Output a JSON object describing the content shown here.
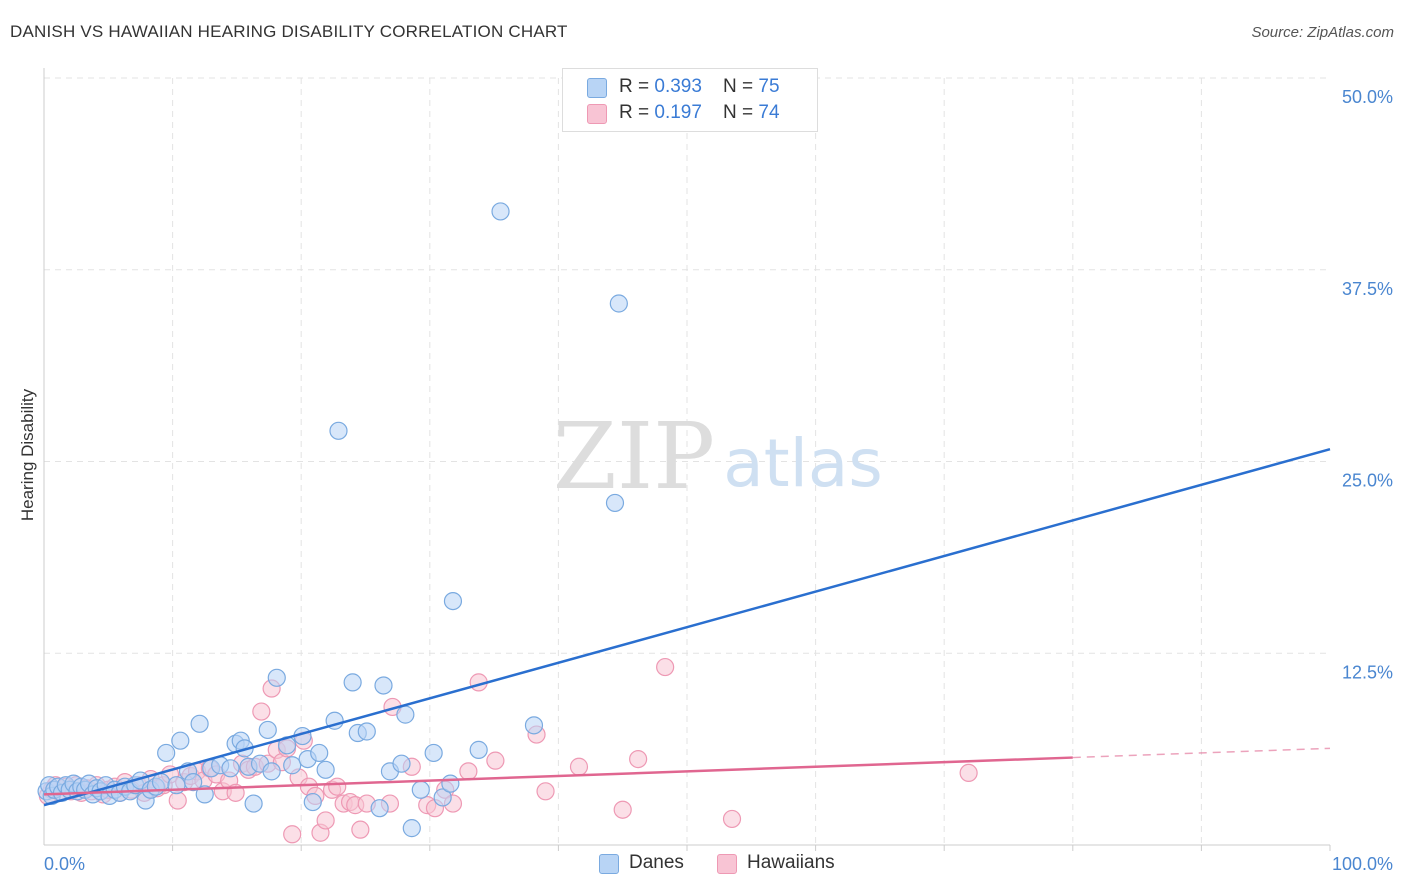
{
  "title": "DANISH VS HAWAIIAN HEARING DISABILITY CORRELATION CHART",
  "source": "Source: ZipAtlas.com",
  "watermark": {
    "zip": "ZIP",
    "atlas": "atlas"
  },
  "legend": {
    "rows": [
      {
        "r_label": "R = ",
        "r_value": "0.393",
        "n_label": "N = ",
        "n_value": "75"
      },
      {
        "r_label": "R = ",
        "r_value": "0.197",
        "n_label": "N = ",
        "n_value": "74"
      }
    ]
  },
  "colors": {
    "danes_fill": "#b8d4f5",
    "danes_stroke": "#7aaae0",
    "danes_line": "#2a6fcf",
    "hawaiians_fill": "#f8c4d4",
    "hawaiians_stroke": "#ee99b4",
    "hawaiians_line": "#e06690",
    "tick_label": "#4a86d0",
    "grid": "#e3e3e3"
  },
  "chart_data": {
    "type": "scatter",
    "ylabel": "Hearing Disability",
    "xlabel": "",
    "xlim": [
      0,
      100
    ],
    "ylim": [
      0,
      50
    ],
    "x_tick_labels": [
      {
        "value": 0,
        "label": "0.0%"
      },
      {
        "value": 100,
        "label": "100.0%"
      }
    ],
    "y_tick_labels": [
      {
        "value": 12.5,
        "label": "12.5%"
      },
      {
        "value": 25,
        "label": "25.0%"
      },
      {
        "value": 37.5,
        "label": "37.5%"
      },
      {
        "value": 50,
        "label": "50.0%"
      }
    ],
    "grid": true,
    "legend_position": "top-center",
    "series": [
      {
        "name": "Danes",
        "trend": {
          "x": [
            0,
            100
          ],
          "y": [
            2.6,
            25.8
          ]
        },
        "points": [
          [
            0.2,
            3.5
          ],
          [
            0.4,
            3.9
          ],
          [
            0.6,
            3.2
          ],
          [
            0.8,
            3.6
          ],
          [
            1.1,
            3.8
          ],
          [
            1.4,
            3.4
          ],
          [
            1.7,
            3.9
          ],
          [
            2.0,
            3.6
          ],
          [
            2.3,
            4.0
          ],
          [
            2.6,
            3.5
          ],
          [
            2.9,
            3.8
          ],
          [
            3.2,
            3.6
          ],
          [
            3.5,
            4.0
          ],
          [
            3.8,
            3.3
          ],
          [
            4.1,
            3.7
          ],
          [
            4.4,
            3.5
          ],
          [
            4.8,
            3.9
          ],
          [
            5.1,
            3.2
          ],
          [
            5.5,
            3.6
          ],
          [
            5.9,
            3.4
          ],
          [
            6.3,
            3.8
          ],
          [
            6.7,
            3.5
          ],
          [
            7.1,
            3.9
          ],
          [
            7.5,
            4.2
          ],
          [
            7.9,
            2.9
          ],
          [
            8.3,
            3.6
          ],
          [
            8.7,
            3.8
          ],
          [
            9.1,
            4.1
          ],
          [
            9.5,
            6.0
          ],
          [
            10.3,
            3.9
          ],
          [
            10.6,
            6.8
          ],
          [
            11.2,
            4.8
          ],
          [
            11.6,
            4.1
          ],
          [
            12.1,
            7.9
          ],
          [
            12.5,
            3.3
          ],
          [
            13.0,
            5.0
          ],
          [
            13.7,
            5.2
          ],
          [
            14.5,
            5.0
          ],
          [
            14.9,
            6.6
          ],
          [
            15.3,
            6.8
          ],
          [
            15.6,
            6.3
          ],
          [
            15.9,
            5.1
          ],
          [
            16.3,
            2.7
          ],
          [
            16.8,
            5.3
          ],
          [
            17.4,
            7.5
          ],
          [
            17.7,
            4.8
          ],
          [
            18.1,
            10.9
          ],
          [
            18.9,
            6.5
          ],
          [
            19.3,
            5.2
          ],
          [
            20.1,
            7.1
          ],
          [
            20.5,
            5.6
          ],
          [
            20.9,
            2.8
          ],
          [
            21.4,
            6.0
          ],
          [
            21.9,
            4.9
          ],
          [
            22.6,
            8.1
          ],
          [
            22.9,
            27.0
          ],
          [
            24.0,
            10.6
          ],
          [
            24.4,
            7.3
          ],
          [
            25.1,
            7.4
          ],
          [
            26.1,
            2.4
          ],
          [
            26.4,
            10.4
          ],
          [
            26.9,
            4.8
          ],
          [
            27.8,
            5.3
          ],
          [
            28.1,
            8.5
          ],
          [
            28.6,
            1.1
          ],
          [
            29.3,
            3.6
          ],
          [
            30.3,
            6.0
          ],
          [
            31.0,
            3.1
          ],
          [
            31.6,
            4.0
          ],
          [
            31.8,
            15.9
          ],
          [
            33.8,
            6.2
          ],
          [
            35.5,
            41.3
          ],
          [
            38.1,
            7.8
          ],
          [
            44.4,
            22.3
          ],
          [
            44.7,
            35.3
          ]
        ]
      },
      {
        "name": "Hawaiians",
        "trend": {
          "x": [
            0,
            80
          ],
          "y": [
            3.3,
            5.7
          ]
        },
        "trend_dashed": {
          "x": [
            80,
            100
          ],
          "y": [
            5.7,
            6.3
          ]
        },
        "points": [
          [
            0.3,
            3.2
          ],
          [
            0.6,
            3.6
          ],
          [
            0.9,
            3.9
          ],
          [
            1.3,
            3.4
          ],
          [
            1.7,
            3.8
          ],
          [
            2.1,
            3.5
          ],
          [
            2.5,
            3.9
          ],
          [
            2.9,
            3.4
          ],
          [
            3.3,
            3.7
          ],
          [
            3.7,
            3.5
          ],
          [
            4.1,
            3.9
          ],
          [
            4.6,
            3.3
          ],
          [
            5.0,
            3.6
          ],
          [
            5.5,
            3.8
          ],
          [
            5.9,
            3.4
          ],
          [
            6.3,
            4.1
          ],
          [
            6.8,
            3.6
          ],
          [
            7.3,
            3.9
          ],
          [
            7.8,
            3.4
          ],
          [
            8.3,
            4.3
          ],
          [
            8.8,
            3.7
          ],
          [
            9.3,
            3.9
          ],
          [
            9.8,
            4.6
          ],
          [
            10.4,
            2.9
          ],
          [
            10.9,
            4.1
          ],
          [
            11.4,
            4.5
          ],
          [
            11.9,
            4.8
          ],
          [
            12.4,
            4.2
          ],
          [
            12.9,
            5.0
          ],
          [
            13.4,
            4.6
          ],
          [
            13.9,
            3.5
          ],
          [
            14.4,
            4.2
          ],
          [
            14.9,
            3.4
          ],
          [
            15.4,
            5.3
          ],
          [
            15.9,
            4.9
          ],
          [
            16.4,
            5.1
          ],
          [
            16.9,
            8.7
          ],
          [
            17.4,
            5.3
          ],
          [
            17.7,
            10.2
          ],
          [
            18.1,
            6.2
          ],
          [
            18.5,
            5.4
          ],
          [
            18.9,
            6.3
          ],
          [
            19.3,
            0.7
          ],
          [
            19.8,
            4.4
          ],
          [
            20.2,
            6.8
          ],
          [
            20.6,
            3.8
          ],
          [
            21.1,
            3.2
          ],
          [
            21.5,
            0.8
          ],
          [
            21.9,
            1.6
          ],
          [
            22.4,
            3.6
          ],
          [
            22.8,
            3.8
          ],
          [
            23.3,
            2.7
          ],
          [
            23.8,
            2.8
          ],
          [
            24.2,
            2.6
          ],
          [
            24.6,
            1.0
          ],
          [
            25.1,
            2.7
          ],
          [
            26.9,
            2.7
          ],
          [
            27.1,
            9.0
          ],
          [
            28.6,
            5.1
          ],
          [
            29.8,
            2.6
          ],
          [
            30.4,
            2.4
          ],
          [
            31.2,
            3.6
          ],
          [
            31.8,
            2.7
          ],
          [
            33.0,
            4.8
          ],
          [
            33.8,
            10.6
          ],
          [
            35.1,
            5.5
          ],
          [
            38.3,
            7.2
          ],
          [
            39.0,
            3.5
          ],
          [
            41.6,
            5.1
          ],
          [
            45.0,
            2.3
          ],
          [
            46.2,
            5.6
          ],
          [
            48.3,
            11.6
          ],
          [
            53.5,
            1.7
          ],
          [
            71.9,
            4.7
          ]
        ]
      }
    ]
  },
  "bottom_legend": [
    {
      "label": "Danes"
    },
    {
      "label": "Hawaiians"
    }
  ]
}
